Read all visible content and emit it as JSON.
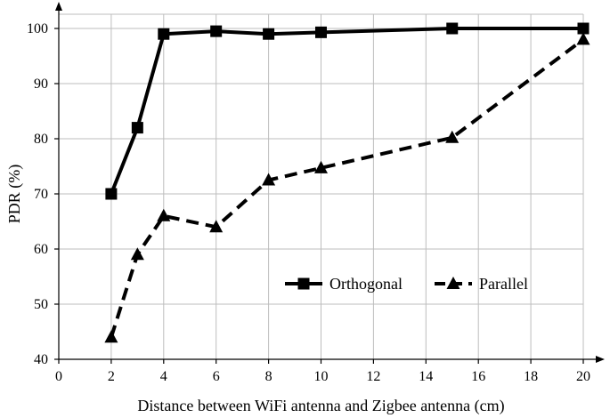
{
  "chart_data": {
    "type": "line",
    "xlabel": "Distance between WiFi antenna and Zigbee antenna (cm)",
    "ylabel": "PDR (%)",
    "xlim": [
      0,
      20
    ],
    "ylim": [
      40,
      100
    ],
    "x_ticks": [
      "0",
      "2",
      "4",
      "6",
      "8",
      "10",
      "12",
      "14",
      "16",
      "18",
      "20"
    ],
    "y_ticks": [
      "40",
      "50",
      "60",
      "70",
      "80",
      "90",
      "100"
    ],
    "grid": true,
    "legend_position": "bottom-right",
    "series": [
      {
        "name": "Orthogonal",
        "marker": "square",
        "line_style": "solid",
        "color": "#000000",
        "x": [
          2,
          3,
          4,
          6,
          8,
          10,
          15,
          20
        ],
        "y": [
          70,
          82,
          99,
          99.5,
          99,
          99.3,
          100,
          100
        ]
      },
      {
        "name": "Parallel",
        "marker": "triangle",
        "line_style": "dashed",
        "color": "#000000",
        "x": [
          2,
          3,
          4,
          6,
          8,
          10,
          15,
          20
        ],
        "y": [
          44,
          59,
          66,
          64,
          72.5,
          74.7,
          80.2,
          98
        ]
      }
    ]
  }
}
